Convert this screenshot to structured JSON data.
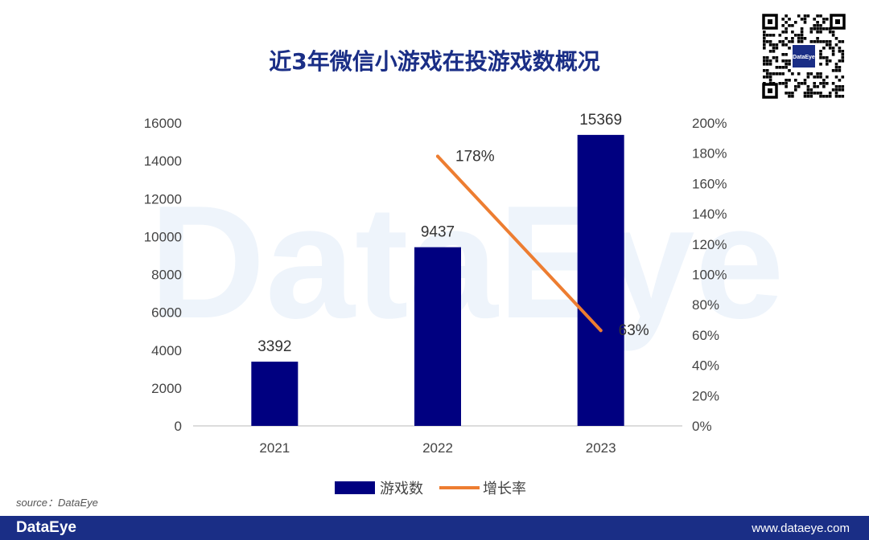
{
  "brand": {
    "footer_logo": "DataEye",
    "footer_url": "www.dataeye.com",
    "qr_logo": "DataEye",
    "watermark": "DataEye",
    "primary_color": "#1a2e86"
  },
  "source_text": "source：DataEye",
  "chart_data": {
    "type": "bar",
    "title": "近3年微信小游戏在投游戏数概况",
    "categories": [
      "2021",
      "2022",
      "2023"
    ],
    "series": [
      {
        "name": "游戏数",
        "type": "bar",
        "axis": "left",
        "color": "#000080",
        "values": [
          3392,
          9437,
          15369
        ],
        "labels": [
          "3392",
          "9437",
          "15369"
        ]
      },
      {
        "name": "增长率",
        "type": "line",
        "axis": "right",
        "color": "#ed7d31",
        "values": [
          null,
          178,
          63
        ],
        "labels": [
          "",
          "178%",
          "63%"
        ]
      }
    ],
    "y_left": {
      "min": 0,
      "max": 16000,
      "ticks": [
        "0",
        "2000",
        "4000",
        "6000",
        "8000",
        "10000",
        "12000",
        "14000",
        "16000"
      ]
    },
    "y_right": {
      "min": 0,
      "max": 200,
      "ticks": [
        "0%",
        "20%",
        "40%",
        "60%",
        "80%",
        "100%",
        "120%",
        "140%",
        "160%",
        "180%",
        "200%"
      ]
    },
    "grid": false,
    "legend_position": "bottom"
  }
}
